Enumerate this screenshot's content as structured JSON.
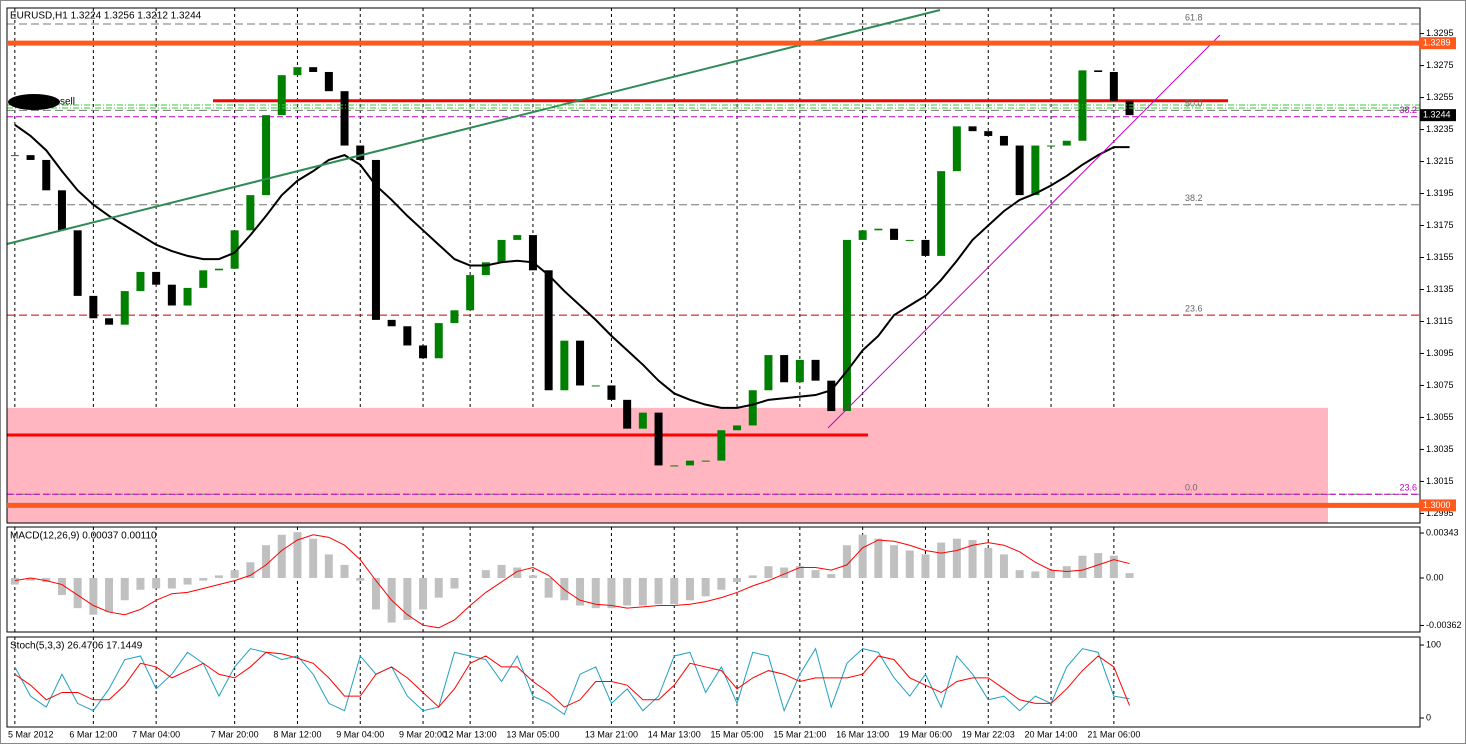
{
  "chart_data": [
    {
      "type": "candlestick",
      "title": "EURUSD,H1  1.3224 1.3256 1.3212 1.3244",
      "categories": [
        "5 Mar 2012",
        null,
        null,
        null,
        null,
        "6 Mar 12:00",
        null,
        null,
        null,
        "7 Mar 04:00",
        null,
        null,
        null,
        null,
        "7 Mar 20:00",
        null,
        null,
        null,
        "8 Mar 12:00",
        null,
        null,
        null,
        "9 Mar 04:00",
        null,
        null,
        null,
        "9 Mar 20:00",
        null,
        null,
        "12 Mar 13:00",
        null,
        null,
        null,
        "13 Mar 05:00",
        null,
        null,
        null,
        null,
        "13 Mar 21:00",
        null,
        null,
        null,
        "14 Mar 13:00",
        null,
        null,
        null,
        "15 Mar 05:00",
        null,
        null,
        null,
        "15 Mar 21:00",
        null,
        null,
        null,
        "16 Mar 13:00",
        null,
        null,
        null,
        "19 Mar 06:00",
        null,
        null,
        null,
        "19 Mar 22:03",
        null,
        null,
        null,
        "20 Mar 14:00",
        null,
        null,
        null,
        "21 Mar 06:00",
        null
      ],
      "values": [
        1.3219,
        1.3216,
        1.3197,
        1.3172,
        1.3131,
        1.3117,
        1.3113,
        1.3134,
        1.3146,
        1.3138,
        1.3125,
        1.3136,
        1.3147,
        1.3148,
        1.3172,
        1.3194,
        1.3244,
        1.3269,
        1.3274,
        1.3271,
        1.3259,
        1.3225,
        1.3216,
        1.3116,
        1.3112,
        1.31,
        1.3092,
        1.3114,
        1.3122,
        1.3144,
        1.3152,
        1.3166,
        1.3169,
        1.3147,
        1.3072,
        1.3103,
        1.3075,
        1.3075,
        1.3066,
        1.3048,
        1.3058,
        1.3025,
        1.3025,
        1.3028,
        1.3028,
        1.3047,
        1.305,
        1.3072,
        1.3094,
        1.3077,
        1.3091,
        1.3078,
        1.3059,
        1.3166,
        1.3172,
        1.3173,
        1.3166,
        1.3166,
        1.3156,
        1.3209,
        1.3237,
        1.3234,
        1.3231,
        1.3225,
        1.3194,
        1.3225,
        1.3225,
        1.3228,
        1.3272,
        1.3271,
        1.3253,
        1.3244
      ],
      "up_color": "#008000",
      "down_color": "#000000",
      "ma": {
        "color": "#000000",
        "values": [
          1.3238,
          1.3231,
          1.3222,
          1.3209,
          1.3197,
          1.3188,
          1.3181,
          1.3175,
          1.3169,
          1.3163,
          1.3159,
          1.3156,
          1.3154,
          1.3154,
          1.3158,
          1.3169,
          1.3181,
          1.3194,
          1.3203,
          1.3209,
          1.3216,
          1.3219,
          1.3213,
          1.32,
          1.3191,
          1.3181,
          1.3172,
          1.3163,
          1.3154,
          1.315,
          1.315,
          1.3152,
          1.3153,
          1.3152,
          1.3144,
          1.3134,
          1.3125,
          1.3116,
          1.3106,
          1.3097,
          1.3088,
          1.3078,
          1.307,
          1.3066,
          1.3063,
          1.3061,
          1.3061,
          1.3063,
          1.3066,
          1.3067,
          1.3068,
          1.3069,
          1.3072,
          1.3084,
          1.3097,
          1.3106,
          1.3119,
          1.3125,
          1.3131,
          1.3141,
          1.3153,
          1.3166,
          1.3175,
          1.3184,
          1.3191,
          1.3195,
          1.32,
          1.3206,
          1.3213,
          1.3219,
          1.3224,
          1.3224
        ]
      },
      "ylim": [
        1.2989,
        1.3311
      ],
      "yticks": [
        1.3295,
        1.3275,
        1.3255,
        1.3235,
        1.3215,
        1.3195,
        1.3175,
        1.3155,
        1.3135,
        1.3115,
        1.3095,
        1.3075,
        1.3055,
        1.3035,
        1.3015,
        1.2995
      ],
      "zone": {
        "top": 1.3061,
        "color": "#ffb6c1"
      },
      "levels": [
        {
          "value": 1.3289,
          "label": "1.3289",
          "color": "#ff5a1e",
          "line": true
        },
        {
          "value": 1.3244,
          "label": "1.3244",
          "color": "#000000",
          "line": false
        },
        {
          "value": 1.3,
          "label": "1.3000",
          "color": "#ff5a1e",
          "line": true
        }
      ],
      "red_lines": [
        {
          "value": 1.3253,
          "color": "#ff0000"
        },
        {
          "value": 1.3044,
          "color": "#ff0000"
        }
      ],
      "fib": [
        {
          "label": "61.8",
          "value": 1.3301,
          "color": "#777777"
        },
        {
          "label": "50.0",
          "value": 1.3247,
          "color": "#777777"
        },
        {
          "label": "38.2",
          "value": 1.3188,
          "color": "#777777"
        },
        {
          "label": "23.6",
          "value": 1.3119,
          "color": "#c00000"
        },
        {
          "label": "0.0",
          "value": 1.3007,
          "color": "#777777"
        }
      ],
      "fib2": [
        {
          "label": "38.2",
          "value": 1.3243,
          "color": "#c000c0"
        },
        {
          "label": "23.6",
          "value": 1.3007,
          "color": "#c000c0"
        }
      ],
      "annotation": "sell"
    },
    {
      "type": "macd",
      "title": "MACD(12,26,9) 0.00037 0.00110",
      "histogram": {
        "color": "#c0c0c0",
        "values": [
          -0.0005,
          -0.0002,
          -0.0003,
          -0.0013,
          -0.0023,
          -0.0028,
          -0.0026,
          -0.0017,
          -0.0009,
          -0.0008,
          -0.0008,
          -0.0005,
          -0.0002,
          0.0002,
          0.0006,
          0.0012,
          0.0025,
          0.0033,
          0.0035,
          0.003,
          0.0018,
          0.001,
          -0.0002,
          -0.0024,
          -0.0034,
          -0.0032,
          -0.0024,
          -0.0015,
          -0.0008,
          0,
          0.0006,
          0.001,
          0.0008,
          0.0002,
          -0.0015,
          -0.0017,
          -0.0021,
          -0.0023,
          -0.0023,
          -0.0021,
          -0.0021,
          -0.002,
          -0.002,
          -0.0017,
          -0.0014,
          -0.0009,
          -0.0003,
          0.0002,
          0.0009,
          0.0008,
          0.0009,
          0.0006,
          0.0003,
          0.0025,
          0.0033,
          0.003,
          0.0025,
          0.0021,
          0.0018,
          0.0027,
          0.003,
          0.0029,
          0.0023,
          0.0018,
          0.0006,
          0.0005,
          0.0006,
          0.0009,
          0.0017,
          0.0019,
          0.0017,
          0.00037
        ]
      },
      "signal": {
        "color": "#ff0000",
        "values": [
          -0.0002,
          0,
          -0.0002,
          -0.0005,
          -0.0013,
          -0.0021,
          -0.0026,
          -0.0028,
          -0.0024,
          -0.0017,
          -0.0012,
          -0.0011,
          -0.0008,
          -0.0005,
          -0.0002,
          0.0002,
          0.001,
          0.0021,
          0.0029,
          0.0033,
          0.0031,
          0.0025,
          0.0014,
          -0.0002,
          -0.0017,
          -0.0028,
          -0.0036,
          -0.0038,
          -0.0032,
          -0.0021,
          -0.0011,
          -0.0003,
          0.0005,
          0.0008,
          0.0002,
          -0.0009,
          -0.0017,
          -0.002,
          -0.0021,
          -0.0023,
          -0.0022,
          -0.0021,
          -0.0021,
          -0.002,
          -0.0018,
          -0.0015,
          -0.0011,
          -0.0006,
          -0.0002,
          0.0003,
          0.0008,
          0.0008,
          0.0006,
          0.001,
          0.0023,
          0.0029,
          0.0028,
          0.0025,
          0.0021,
          0.0019,
          0.0021,
          0.0025,
          0.0027,
          0.0025,
          0.002,
          0.0012,
          0.0006,
          0.0005,
          0.0006,
          0.001,
          0.0014,
          0.0011
        ]
      },
      "ylim": [
        -0.00412,
        0.00389
      ],
      "yticks": [
        0.00343,
        {
          "value": 0,
          "label": "0.00"
        },
        -0.00362
      ]
    },
    {
      "type": "stochastic",
      "title": "Stoch(5,3,3) 26.4706 17.1449",
      "series": [
        {
          "color": "#20a0c0",
          "values": [
            70,
            30,
            15,
            60,
            20,
            10,
            40,
            80,
            85,
            40,
            60,
            90,
            75,
            30,
            70,
            95,
            90,
            80,
            85,
            60,
            20,
            10,
            85,
            60,
            70,
            30,
            10,
            15,
            90,
            85,
            80,
            50,
            85,
            30,
            20,
            5,
            60,
            70,
            20,
            40,
            10,
            30,
            85,
            90,
            35,
            70,
            20,
            90,
            85,
            10,
            60,
            95,
            15,
            75,
            95,
            90,
            55,
            30,
            60,
            15,
            85,
            60,
            25,
            30,
            10,
            30,
            20,
            70,
            95,
            90,
            30,
            26.4706
          ]
        },
        {
          "color": "#ff0000",
          "values": [
            60,
            45,
            25,
            35,
            35,
            25,
            25,
            45,
            75,
            70,
            55,
            65,
            75,
            60,
            55,
            70,
            90,
            88,
            82,
            75,
            55,
            30,
            30,
            60,
            70,
            55,
            35,
            15,
            40,
            75,
            85,
            70,
            70,
            50,
            35,
            15,
            25,
            50,
            50,
            45,
            25,
            25,
            45,
            75,
            70,
            65,
            40,
            55,
            65,
            60,
            50,
            55,
            55,
            55,
            60,
            85,
            80,
            55,
            45,
            35,
            50,
            55,
            55,
            40,
            25,
            20,
            20,
            40,
            65,
            85,
            70,
            17.1449
          ]
        }
      ],
      "ylim": [
        -12.3,
        111
      ],
      "yticks": [
        100,
        0
      ]
    }
  ]
}
